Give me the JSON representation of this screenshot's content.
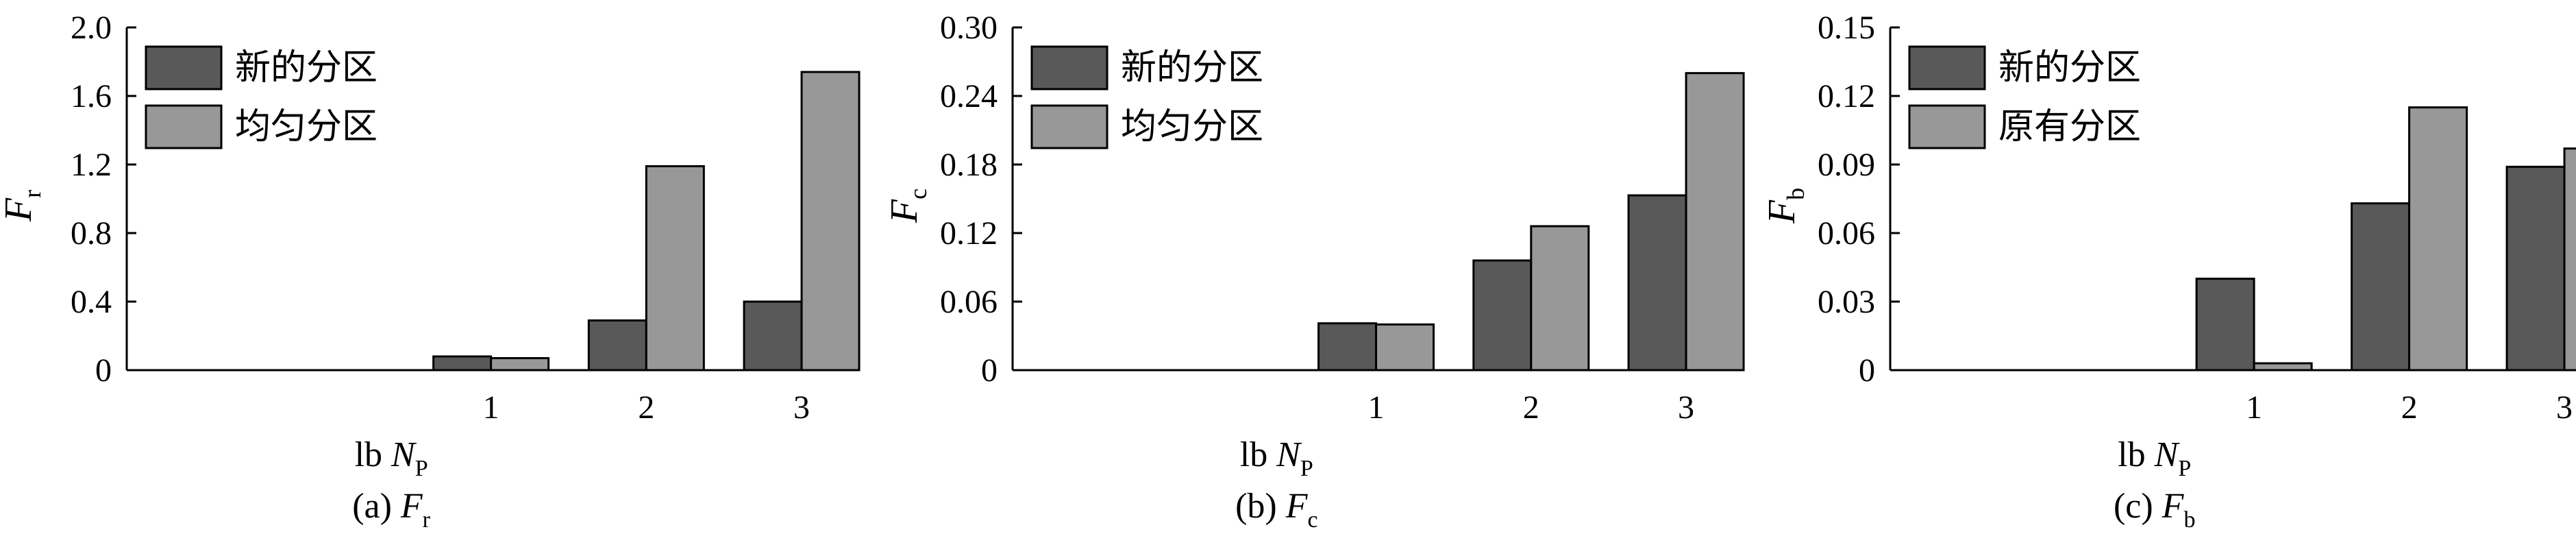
{
  "colors": {
    "series_new": "#595959",
    "series_other": "#989898",
    "stroke": "#000000"
  },
  "chart_data": [
    {
      "type": "bar",
      "categories": [
        "1",
        "2",
        "3"
      ],
      "series": [
        {
          "name": "新的分区",
          "values": [
            0.08,
            0.29,
            0.4
          ]
        },
        {
          "name": "均匀分区",
          "values": [
            0.07,
            1.19,
            1.74
          ]
        }
      ],
      "ylim": [
        0,
        2.0
      ],
      "yticks": [
        "0",
        "0.4",
        "0.8",
        "1.2",
        "1.6",
        "2.0"
      ],
      "ylabel": {
        "main": "F",
        "sub": "r"
      },
      "xlabel": {
        "prefix": "lb ",
        "main": "N",
        "sub": "P"
      },
      "caption": {
        "prefix": "(a)",
        "main": "F",
        "sub": "r"
      },
      "legend": "top-left",
      "grid": false
    },
    {
      "type": "bar",
      "categories": [
        "1",
        "2",
        "3"
      ],
      "series": [
        {
          "name": "新的分区",
          "values": [
            0.041,
            0.096,
            0.153
          ]
        },
        {
          "name": "均匀分区",
          "values": [
            0.04,
            0.126,
            0.26
          ]
        }
      ],
      "ylim": [
        0,
        0.3
      ],
      "yticks": [
        "0",
        "0.06",
        "0.12",
        "0.18",
        "0.24",
        "0.30"
      ],
      "ylabel": {
        "main": "F",
        "sub": "c"
      },
      "xlabel": {
        "prefix": "lb ",
        "main": "N",
        "sub": "P"
      },
      "caption": {
        "prefix": "(b)",
        "main": "F",
        "sub": "c"
      },
      "legend": "top-left",
      "grid": false
    },
    {
      "type": "bar",
      "categories": [
        "1",
        "2",
        "3"
      ],
      "series": [
        {
          "name": "新的分区",
          "values": [
            0.04,
            0.073,
            0.089
          ]
        },
        {
          "name": "原有分区",
          "values": [
            0.003,
            0.115,
            0.097
          ]
        }
      ],
      "ylim": [
        0,
        0.15
      ],
      "yticks": [
        "0",
        "0.03",
        "0.06",
        "0.09",
        "0.12",
        "0.15"
      ],
      "ylabel": {
        "main": "F",
        "sub": "b"
      },
      "xlabel": {
        "prefix": "lb ",
        "main": "N",
        "sub": "P"
      },
      "caption": {
        "prefix": "(c)",
        "main": "F",
        "sub": "b"
      },
      "legend": "top-left",
      "grid": false
    }
  ]
}
